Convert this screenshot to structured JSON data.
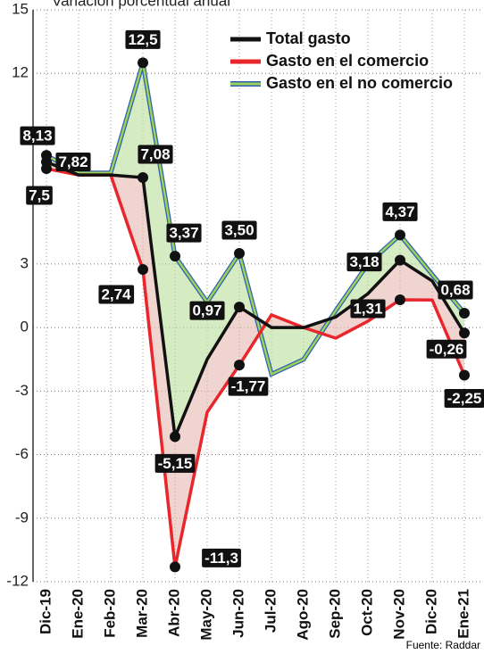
{
  "chart_data": {
    "type": "line",
    "title": "Variación porcentual anual",
    "source": "Fuente: Raddar",
    "categories": [
      "Dic-19",
      "Ene-20",
      "Feb-20",
      "Mar-20",
      "Abr-20",
      "May-20",
      "Jun-20",
      "Jul-20",
      "Ago-20",
      "Sep-20",
      "Oct-20",
      "Nov-20",
      "Dic-20",
      "Ene-21"
    ],
    "series": [
      {
        "name": "Total gasto",
        "color": "#111111",
        "values": [
          7.82,
          7.2,
          7.2,
          7.08,
          -5.15,
          -1.5,
          0.97,
          0,
          0,
          0.5,
          1.6,
          3.18,
          2.2,
          -0.26
        ],
        "value_labels": [
          "7,82",
          null,
          null,
          "7,08",
          "-5,15",
          null,
          "0,97",
          null,
          null,
          null,
          null,
          "3,18",
          null,
          "-0,26"
        ]
      },
      {
        "name": "Gasto en el comercio",
        "color": "#e8262b",
        "values": [
          7.5,
          7.2,
          7.2,
          2.74,
          -11.3,
          -4,
          -1.77,
          0.6,
          0,
          -0.5,
          0.3,
          1.31,
          1.3,
          -2.25
        ],
        "value_labels": [
          "7,5",
          null,
          null,
          "2,74",
          "-11,3",
          null,
          "-1,77",
          null,
          null,
          null,
          null,
          "1,31",
          null,
          "-2,25"
        ]
      },
      {
        "name": "Gasto en el no comercio",
        "color": "#9bd35a",
        "values": [
          8.13,
          7.3,
          7.3,
          12.5,
          3.37,
          1.2,
          3.5,
          -2.2,
          -1.5,
          0.8,
          3.0,
          4.37,
          2.5,
          0.68
        ],
        "value_labels": [
          "8,13",
          null,
          null,
          "12,5",
          "3,37",
          null,
          "3,50",
          null,
          null,
          null,
          null,
          "4,37",
          null,
          "0,68"
        ]
      }
    ],
    "ylim": [
      -12,
      15
    ],
    "yticks": [
      -12,
      -9,
      -6,
      -3,
      0,
      3,
      12,
      15
    ],
    "grid": true
  }
}
